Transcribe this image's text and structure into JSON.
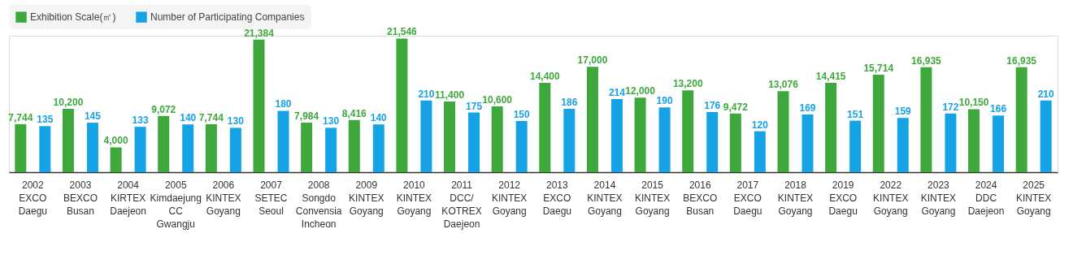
{
  "chart_data": {
    "type": "bar",
    "categories": [
      "2002\nEXCO\nDaegu",
      "2003\nBEXCO\nBusan",
      "2004\nKIRTEX\nDaejeon",
      "2005\nKimdaejung\nCC\nGwangju",
      "2006\nKINTEX\nGoyang",
      "2007\nSETEC\nSeoul",
      "2008\nSongdo\nConvensia\nIncheon",
      "2009\nKINTEX\nGoyang",
      "2010\nKINTEX\nGoyang",
      "2011\nDCC/\nKOTREX\nDaejeon",
      "2012\nKINTEX\nGoyang",
      "2013\nEXCO\nDaegu",
      "2014\nKINTEX\nGoyang",
      "2015\nKINTEX\nGoyang",
      "2016\nBEXCO\nBusan",
      "2017\nEXCO\nDaegu",
      "2018\nKINTEX\nGoyang",
      "2019\nEXCO\nDaegu",
      "2022\nKINTEX\nGoyang",
      "2023\nKINTEX\nGoyang",
      "2024\nDDC\nDaejeon",
      "2025\nKINTEX\nGoyang"
    ],
    "series": [
      {
        "name": "Exhibition Scale(㎡)",
        "color": "#3ea83c",
        "values": [
          7744,
          10200,
          4000,
          9072,
          7744,
          21384,
          7984,
          8416,
          21546,
          11400,
          10600,
          14400,
          17000,
          12000,
          13200,
          9472,
          13076,
          14415,
          15714,
          16935,
          10150,
          16935
        ],
        "value_labels": [
          "7,744",
          "10,200",
          "4,000",
          "9,072",
          "7,744",
          "21,384",
          "7,984",
          "8,416",
          "21,546",
          "11,400",
          "10,600",
          "14,400",
          "17,000",
          "12,000",
          "13,200",
          "9,472",
          "13,076",
          "14,415",
          "15,714",
          "16,935",
          "10,150",
          "16,935"
        ]
      },
      {
        "name": "Number of Participating Companies",
        "color": "#16a3e6",
        "axis": "y2",
        "values": [
          135,
          145,
          133,
          140,
          130,
          180,
          130,
          140,
          210,
          175,
          150,
          186,
          214,
          190,
          176,
          120,
          169,
          151,
          159,
          172,
          166,
          210
        ],
        "data_labels": true
      }
    ],
    "tick_labels": "x",
    "legend": "top left"
  }
}
